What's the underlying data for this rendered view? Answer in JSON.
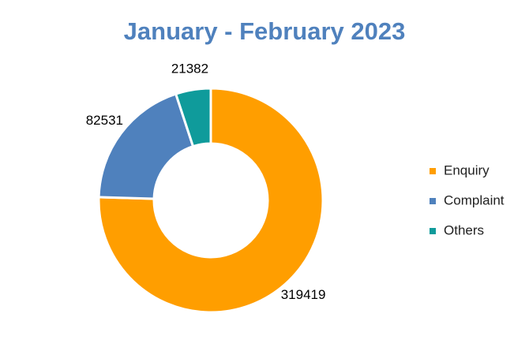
{
  "chart_data": {
    "type": "donut",
    "title": "January - February 2023",
    "categories": [
      "Enquiry",
      "Complaint",
      "Others"
    ],
    "values": [
      319419,
      82531,
      21382
    ],
    "colors": [
      "#ff9e00",
      "#4f81bd",
      "#0f9b9b"
    ],
    "legend": "right"
  }
}
